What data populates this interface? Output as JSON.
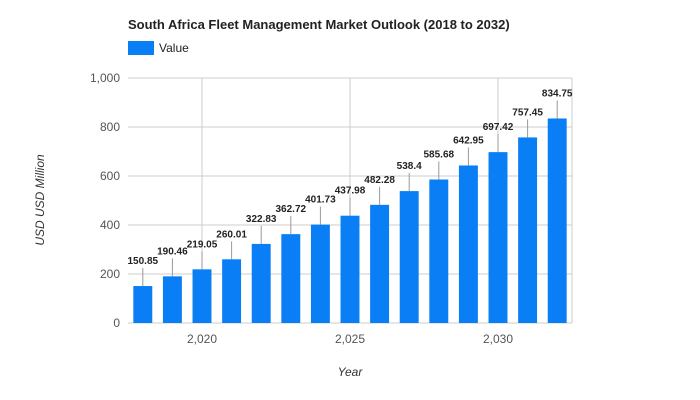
{
  "chart_data": {
    "type": "bar",
    "title": "South Africa Fleet Management Market Outlook (2018 to 2032)",
    "xlabel": "Year",
    "ylabel": "USD USD Million",
    "legend": "top-left",
    "grid": true,
    "series": [
      {
        "name": "Value",
        "color": "#0a7ff5",
        "x": [
          2018,
          2019,
          2020,
          2021,
          2022,
          2023,
          2024,
          2025,
          2026,
          2027,
          2028,
          2029,
          2030,
          2031,
          2032
        ],
        "values": [
          150.85,
          190.46,
          219.05,
          260.01,
          322.83,
          362.72,
          401.73,
          437.98,
          482.28,
          538.4,
          585.68,
          642.95,
          697.42,
          757.45,
          834.75
        ],
        "labels": [
          "150.85",
          "190.46",
          "219.05",
          "260.01",
          "322.83",
          "362.72",
          "401.73",
          "437.98",
          "482.28",
          "538.4",
          "585.68",
          "642.95",
          "697.42",
          "757.45",
          "834.75"
        ]
      }
    ],
    "ylim": [
      0,
      1000
    ],
    "yticks": [
      0,
      200,
      400,
      600,
      800,
      1000
    ],
    "ytick_labels": [
      "0",
      "200",
      "400",
      "600",
      "800",
      "1,000"
    ],
    "xticks": [
      2020,
      2025,
      2030
    ],
    "xtick_labels": [
      "2,020",
      "2,025",
      "2,030"
    ]
  }
}
